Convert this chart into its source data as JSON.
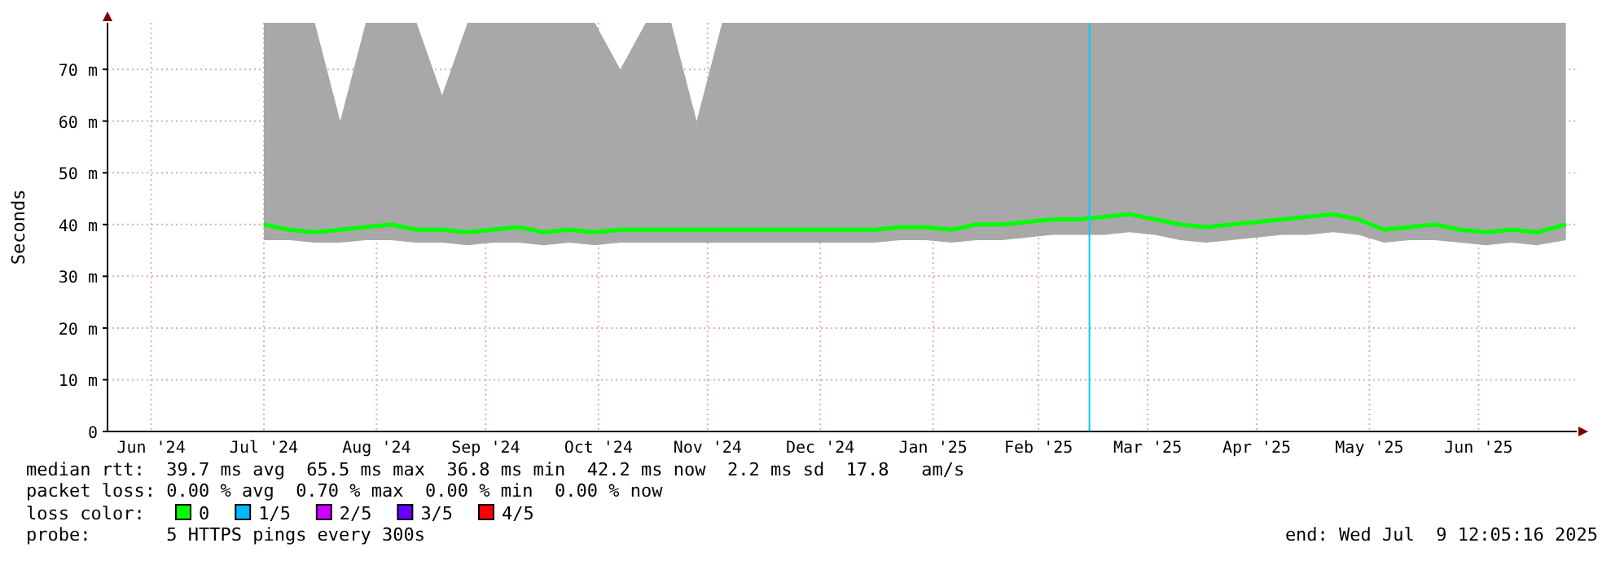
{
  "chart_data": {
    "type": "line",
    "ylabel": "Seconds",
    "legend_title": "loss color:",
    "legend": "bottom",
    "grid": true,
    "xlim": [
      "2024-06-03",
      "2025-07-12"
    ],
    "xticks": [
      {
        "value": "2024-06-15",
        "label": "Jun '24"
      },
      {
        "value": "2024-07-16",
        "label": "Jul '24"
      },
      {
        "value": "2024-08-16",
        "label": "Aug '24"
      },
      {
        "value": "2024-09-15",
        "label": "Sep '24"
      },
      {
        "value": "2024-10-16",
        "label": "Oct '24"
      },
      {
        "value": "2024-11-15",
        "label": "Nov '24"
      },
      {
        "value": "2024-12-16",
        "label": "Dec '24"
      },
      {
        "value": "2025-01-16",
        "label": "Jan '25"
      },
      {
        "value": "2025-02-14",
        "label": "Feb '25"
      },
      {
        "value": "2025-03-16",
        "label": "Mar '25"
      },
      {
        "value": "2025-04-15",
        "label": "Apr '25"
      },
      {
        "value": "2025-05-16",
        "label": "May '25"
      },
      {
        "value": "2025-06-15",
        "label": "Jun '25"
      }
    ],
    "ylim": [
      0,
      79
    ],
    "yticks": [
      0,
      {
        "value": 10,
        "label": "10 m"
      },
      {
        "value": 20,
        "label": "20 m"
      },
      {
        "value": 30,
        "label": "30 m"
      },
      {
        "value": 40,
        "label": "40 m"
      },
      {
        "value": 50,
        "label": "50 m"
      },
      {
        "value": 60,
        "label": "60 m"
      },
      {
        "value": 70,
        "label": "70 m"
      }
    ],
    "x": [
      "2024-07-16",
      "2024-07-23",
      "2024-07-30",
      "2024-08-06",
      "2024-08-13",
      "2024-08-20",
      "2024-08-27",
      "2024-09-03",
      "2024-09-10",
      "2024-09-17",
      "2024-09-24",
      "2024-10-01",
      "2024-10-08",
      "2024-10-15",
      "2024-10-22",
      "2024-10-29",
      "2024-11-05",
      "2024-11-12",
      "2024-11-19",
      "2024-11-26",
      "2024-12-03",
      "2024-12-10",
      "2024-12-17",
      "2024-12-24",
      "2024-12-31",
      "2025-01-07",
      "2025-01-14",
      "2025-01-21",
      "2025-01-28",
      "2025-02-04",
      "2025-02-11",
      "2025-02-18",
      "2025-02-25",
      "2025-03-04",
      "2025-03-11",
      "2025-03-18",
      "2025-03-25",
      "2025-04-01",
      "2025-04-08",
      "2025-04-15",
      "2025-04-22",
      "2025-04-29",
      "2025-05-06",
      "2025-05-13",
      "2025-05-20",
      "2025-05-27",
      "2025-06-03",
      "2025-06-10",
      "2025-06-17",
      "2025-06-24",
      "2025-07-01",
      "2025-07-09"
    ],
    "series": [
      {
        "name": "0",
        "color": "#00ff00",
        "values": [
          40,
          39,
          38.5,
          39,
          39.5,
          40,
          39,
          39,
          38.5,
          39,
          39.5,
          38.5,
          39,
          38.5,
          39,
          39,
          39,
          39,
          39,
          39,
          39,
          39,
          39,
          39,
          39,
          39.5,
          39.5,
          39,
          40,
          40,
          40.5,
          41,
          41,
          41.5,
          42,
          41,
          40,
          39.5,
          40,
          40.5,
          41,
          41.5,
          42,
          41,
          39,
          39.5,
          40,
          39,
          38.5,
          39,
          38.5,
          40
        ],
        "lower": [
          37,
          37,
          36.5,
          36.5,
          37,
          37,
          36.5,
          36.5,
          36,
          36.5,
          36.5,
          36,
          36.5,
          36,
          36.5,
          36.5,
          36.5,
          36.5,
          36.5,
          36.5,
          36.5,
          36.5,
          36.5,
          36.5,
          36.5,
          37,
          37,
          36.5,
          37,
          37,
          37.5,
          38,
          38,
          38,
          38.5,
          38,
          37,
          36.5,
          37,
          37.5,
          38,
          38,
          38.5,
          38,
          36.5,
          37,
          37,
          36.5,
          36,
          36.5,
          36,
          37
        ],
        "upper": [
          79,
          79,
          79,
          60,
          79,
          79,
          79,
          65,
          79,
          79,
          79,
          79,
          79,
          79,
          70,
          79,
          79,
          60,
          79,
          79,
          79,
          79,
          79,
          79,
          79,
          79,
          79,
          79,
          79,
          79,
          79,
          79,
          79,
          79,
          79,
          79,
          79,
          79,
          79,
          79,
          79,
          79,
          79,
          79,
          79,
          79,
          79,
          79,
          79,
          79,
          79,
          79
        ]
      },
      {
        "name": "1/5",
        "color": "#00b8ff",
        "values": [
          null,
          null,
          null,
          null,
          null,
          null,
          null,
          null,
          null,
          null,
          null,
          null,
          null,
          null,
          null,
          null,
          null,
          null,
          null,
          null,
          null,
          null,
          null,
          null,
          null,
          null,
          null,
          null,
          null,
          null,
          null,
          null,
          null,
          null,
          null,
          null,
          null,
          null,
          null,
          null,
          null,
          null,
          null,
          null,
          null,
          null,
          null,
          null,
          null,
          null,
          null,
          null
        ]
      },
      {
        "name": "2/5",
        "color": "#cc00ff",
        "values": [
          null,
          null,
          null,
          null,
          null,
          null,
          null,
          null,
          null,
          null,
          null,
          null,
          null,
          null,
          null,
          null,
          null,
          null,
          null,
          null,
          null,
          null,
          null,
          null,
          null,
          null,
          null,
          null,
          null,
          null,
          null,
          null,
          null,
          null,
          null,
          null,
          null,
          null,
          null,
          null,
          null,
          null,
          null,
          null,
          null,
          null,
          null,
          null,
          null,
          null,
          null,
          null
        ]
      },
      {
        "name": "3/5",
        "color": "#6600ff",
        "values": [
          null,
          null,
          null,
          null,
          null,
          null,
          null,
          null,
          null,
          null,
          null,
          null,
          null,
          null,
          null,
          null,
          null,
          null,
          null,
          null,
          null,
          null,
          null,
          null,
          null,
          null,
          null,
          null,
          null,
          null,
          null,
          null,
          null,
          null,
          null,
          null,
          null,
          null,
          null,
          null,
          null,
          null,
          null,
          null,
          null,
          null,
          null,
          null,
          null,
          null,
          null,
          null
        ]
      },
      {
        "name": "4/5",
        "color": "#ff0000",
        "values": [
          null,
          null,
          null,
          null,
          null,
          null,
          null,
          null,
          null,
          null,
          null,
          null,
          null,
          null,
          null,
          null,
          null,
          null,
          null,
          null,
          null,
          null,
          null,
          null,
          null,
          null,
          null,
          null,
          null,
          null,
          null,
          null,
          null,
          null,
          null,
          null,
          null,
          null,
          null,
          null,
          null,
          null,
          null,
          null,
          null,
          null,
          null,
          null,
          null,
          null,
          null,
          null
        ]
      }
    ],
    "ref_lines": [
      {
        "axis": "x",
        "value": "2025-02-28",
        "color": "#00ccff"
      }
    ],
    "annotations": [
      "median rtt:  39.7 ms avg  65.5 ms max  36.8 ms min  42.2 ms now  2.2 ms sd  17.8   am/s",
      "packet loss: 0.00 % avg  0.70 % max  0.00 % min  0.00 % now",
      "probe:       5 HTTPS pings every 300s",
      "end: Wed Jul  9 12:05:16 2025"
    ]
  }
}
